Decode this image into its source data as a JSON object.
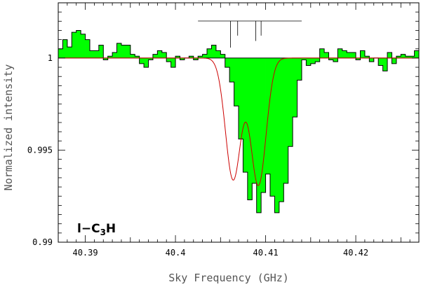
{
  "chart_data": {
    "type": "step-area",
    "title": "",
    "xlabel": "Sky Frequency (GHz)",
    "ylabel": "Normalized intensity",
    "xlim": [
      40.387,
      40.427
    ],
    "ylim": [
      0.99,
      1.003
    ],
    "x_ticks": [
      40.39,
      40.4,
      40.41,
      40.42
    ],
    "x_tick_labels": [
      "40.39",
      "40.4",
      "40.41",
      "40.42"
    ],
    "y_ticks": [
      0.99,
      0.995,
      1.0
    ],
    "y_tick_labels": [
      "0.99",
      "0.995",
      "1"
    ],
    "baseline": 1.0,
    "grid": false,
    "fill_color": "#00ff00",
    "fit_color": "#cc0000",
    "annotation": {
      "prefix": "l−C",
      "sub": "3",
      "suffix": "H"
    },
    "spectrum": {
      "x_start": 40.387,
      "bin_width": 0.0005,
      "values": [
        1.0005,
        1.001,
        1.0006,
        1.0014,
        1.0015,
        1.0013,
        1.001,
        1.0004,
        1.0004,
        1.0007,
        0.9999,
        1.0001,
        1.0003,
        1.0008,
        1.0007,
        1.0007,
        1.0002,
        1.0001,
        0.9997,
        0.9995,
        0.9999,
        1.0002,
        1.0004,
        1.0003,
        0.9998,
        0.9995,
        1.0001,
        0.9999,
        1.0,
        1.0001,
        0.9999,
        1.0001,
        1.0002,
        1.0005,
        1.0007,
        1.0004,
        1.0002,
        0.9995,
        0.9987,
        0.9974,
        0.9956,
        0.9938,
        0.9923,
        0.9932,
        0.9916,
        0.9927,
        0.9937,
        0.9925,
        0.9916,
        0.9922,
        0.9932,
        0.9952,
        0.9968,
        0.9988,
        0.9999,
        0.9996,
        0.9997,
        0.9998,
        1.0005,
        1.0003,
        0.9999,
        0.9998,
        1.0005,
        1.0004,
        1.0003,
        1.0003,
        0.9999,
        1.0004,
        1.0001,
        0.9998,
        1.0,
        0.9996,
        0.9993,
        1.0003,
        0.9997,
        1.0001,
        1.0002,
        1.0001,
        1.0001,
        1.0004
      ]
    },
    "fit": {
      "components": [
        {
          "center": 40.4064,
          "depth": 0.0066,
          "sigma": 0.00085
        },
        {
          "center": 40.4092,
          "depth": 0.0069,
          "sigma": 0.00085
        }
      ]
    },
    "hfs_markers": {
      "span": [
        40.4025,
        40.414
      ],
      "lines": [
        {
          "x": 40.4061,
          "strength": 1.0
        },
        {
          "x": 40.4069,
          "strength": 0.55
        },
        {
          "x": 40.4089,
          "strength": 0.75
        },
        {
          "x": 40.4095,
          "strength": 0.55
        }
      ]
    }
  }
}
